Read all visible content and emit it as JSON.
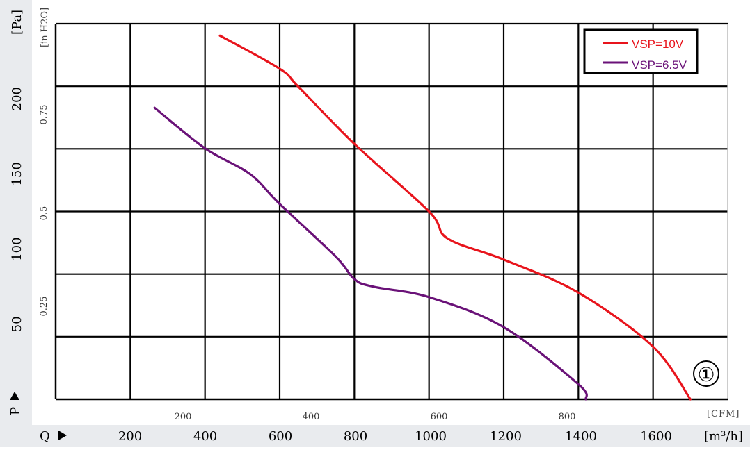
{
  "chart_data": {
    "type": "line",
    "x_unit_label": "[m³/h]",
    "x_prefix": "Q",
    "x_ticks": [
      200,
      400,
      600,
      800,
      1000,
      1200,
      1400,
      1600
    ],
    "x_range": [
      0,
      1800
    ],
    "x2_unit_label": "[CFM]",
    "x2_ticks": [
      "200",
      "400",
      "600",
      "800"
    ],
    "x2_tick_values_m3h": [
      339.8,
      679.6,
      1019.4,
      1359.2
    ],
    "y_unit_label": "[Pa]",
    "y_prefix": "P",
    "y_ticks": [
      50,
      100,
      150,
      200
    ],
    "y_range": [
      0,
      250
    ],
    "y2_unit_label": "[in H2O]",
    "y2_ticks": [
      "0.25",
      "0.5",
      "0.75"
    ],
    "y2_tick_values_pa": [
      62.27,
      124.54,
      186.81
    ],
    "grid": true,
    "legend_position": "top-right",
    "annotation": "①",
    "series": [
      {
        "name": "VSP=10V",
        "color": "#e8141c",
        "x": [
          440,
          600,
          650,
          800,
          1000,
          1050,
          1200,
          1400,
          1600,
          1700
        ],
        "y": [
          242,
          220,
          208,
          170,
          125,
          107,
          93,
          71,
          35,
          0
        ]
      },
      {
        "name": "VSP=6.5V",
        "color": "#6a1278",
        "x": [
          265,
          400,
          520,
          600,
          750,
          800,
          850,
          1000,
          1200,
          1400,
          1420
        ],
        "y": [
          194,
          167,
          150,
          130,
          95,
          80,
          75,
          68,
          48,
          10,
          0
        ]
      }
    ]
  }
}
